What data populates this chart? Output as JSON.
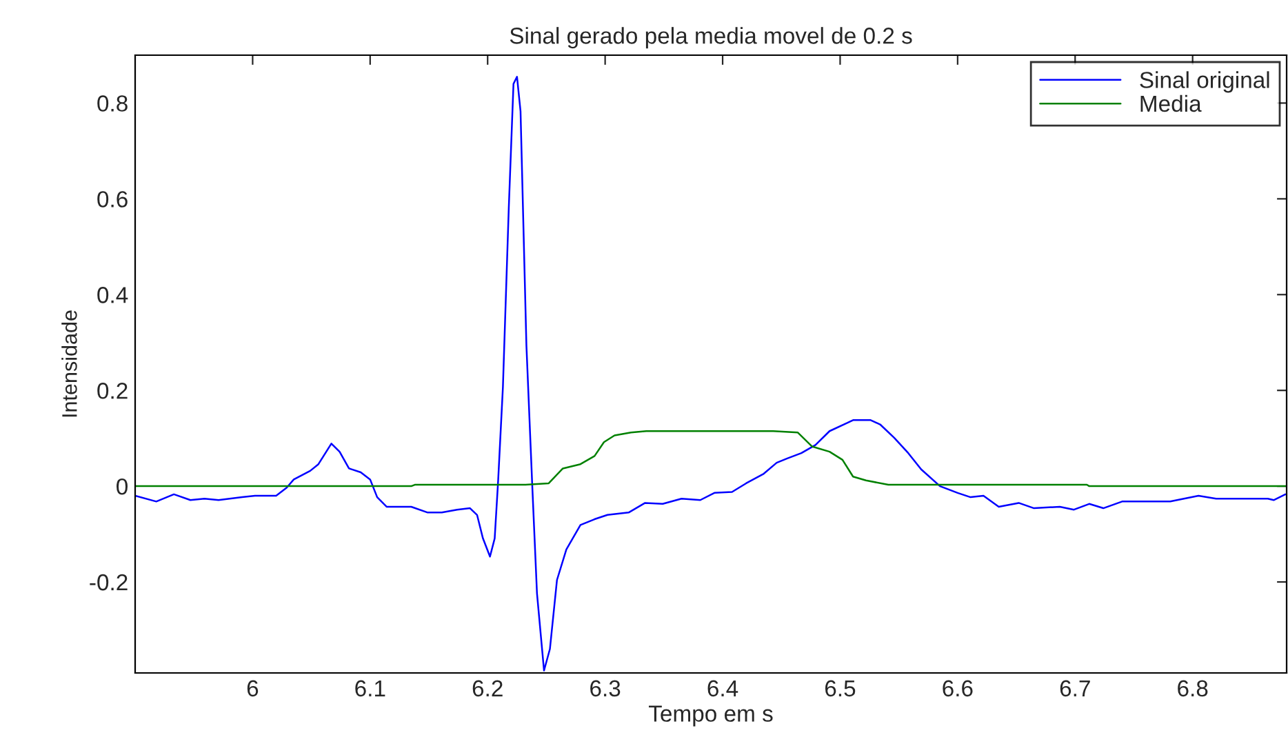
{
  "chart_data": {
    "type": "line",
    "title": "Sinal gerado pela media movel de 0.2 s",
    "xlabel": "Tempo em s",
    "ylabel": "Intensidade",
    "xlim": [
      5.9,
      6.88
    ],
    "ylim": [
      -0.39,
      0.9
    ],
    "xticks": [
      6,
      6.1,
      6.2,
      6.3,
      6.4,
      6.5,
      6.6,
      6.7,
      6.8
    ],
    "yticks": [
      -0.2,
      0,
      0.2,
      0.4,
      0.6,
      0.8
    ],
    "grid": false,
    "legend": "top right",
    "marker": "none",
    "line_style": "solid",
    "series": [
      {
        "name": "Sinal original",
        "color": "#0000ff",
        "x": [
          5.9,
          5.918,
          5.933,
          5.947,
          5.959,
          5.971,
          5.991,
          6.002,
          6.02,
          6.029,
          6.035,
          6.049,
          6.056,
          6.067,
          6.074,
          6.082,
          6.092,
          6.1,
          6.106,
          6.114,
          6.135,
          6.149,
          6.161,
          6.174,
          6.185,
          6.191,
          6.196,
          6.202,
          6.206,
          6.209,
          6.213,
          6.218,
          6.222,
          6.225,
          6.228,
          6.233,
          6.238,
          6.242,
          6.248,
          6.253,
          6.259,
          6.267,
          6.279,
          6.291,
          6.302,
          6.32,
          6.334,
          6.349,
          6.365,
          6.381,
          6.393,
          6.408,
          6.42,
          6.435,
          6.446,
          6.455,
          6.467,
          6.479,
          6.491,
          6.506,
          6.511,
          6.526,
          6.534,
          6.546,
          6.558,
          6.569,
          6.585,
          6.6,
          6.611,
          6.622,
          6.635,
          6.652,
          6.665,
          6.687,
          6.699,
          6.712,
          6.724,
          6.74,
          6.781,
          6.805,
          6.82,
          6.864,
          6.869,
          6.879,
          6.88
        ],
        "values": [
          -0.02,
          -0.032,
          -0.017,
          -0.029,
          -0.026,
          -0.029,
          -0.023,
          -0.02,
          -0.02,
          -0.003,
          0.014,
          0.032,
          0.046,
          0.089,
          0.072,
          0.037,
          0.029,
          0.014,
          -0.023,
          -0.043,
          -0.043,
          -0.055,
          -0.055,
          -0.049,
          -0.046,
          -0.06,
          -0.109,
          -0.147,
          -0.109,
          0.014,
          0.207,
          0.581,
          0.84,
          0.855,
          0.783,
          0.294,
          0.0,
          -0.224,
          -0.385,
          -0.34,
          -0.196,
          -0.132,
          -0.081,
          -0.069,
          -0.06,
          -0.055,
          -0.035,
          -0.037,
          -0.026,
          -0.029,
          -0.014,
          -0.012,
          0.006,
          0.026,
          0.049,
          0.058,
          0.069,
          0.086,
          0.115,
          0.132,
          0.138,
          0.138,
          0.129,
          0.101,
          0.069,
          0.035,
          0.0,
          -0.014,
          -0.023,
          -0.02,
          -0.043,
          -0.035,
          -0.046,
          -0.043,
          -0.049,
          -0.037,
          -0.046,
          -0.032,
          -0.032,
          -0.02,
          -0.026,
          -0.026,
          -0.029,
          -0.017,
          -0.017
        ]
      },
      {
        "name": "Media",
        "color": "#008000",
        "x": [
          5.9,
          6.135,
          6.138,
          6.232,
          6.252,
          6.264,
          6.279,
          6.291,
          6.299,
          6.308,
          6.322,
          6.335,
          6.443,
          6.464,
          6.476,
          6.491,
          6.502,
          6.511,
          6.522,
          6.541,
          6.585,
          6.71,
          6.712,
          6.88
        ],
        "values": [
          0,
          0,
          0.003,
          0.003,
          0.006,
          0.037,
          0.046,
          0.063,
          0.092,
          0.106,
          0.112,
          0.115,
          0.115,
          0.112,
          0.083,
          0.072,
          0.055,
          0.02,
          0.012,
          0.003,
          0.003,
          0.003,
          0,
          0
        ]
      }
    ]
  }
}
